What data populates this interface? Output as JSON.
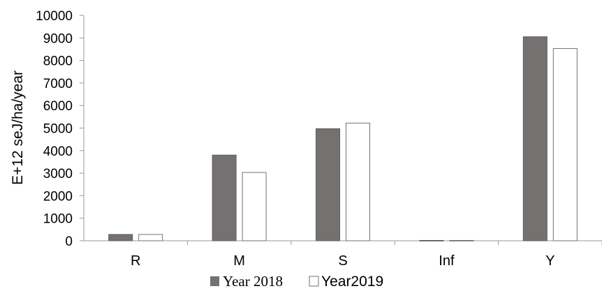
{
  "chart_data": {
    "type": "bar",
    "categories": [
      "R",
      "M",
      "S",
      "Inf",
      "Υ"
    ],
    "series": [
      {
        "name": "Year 2018",
        "values": [
          280,
          3800,
          4970,
          15,
          9050
        ],
        "color": "#767171"
      },
      {
        "name": "Year2019",
        "values": [
          280,
          3030,
          5220,
          15,
          8530
        ],
        "color": "#ffffff"
      }
    ],
    "ylabel": "E+12 seJ/ha/year",
    "ylim": [
      0,
      10000
    ],
    "yticks": [
      "0",
      "1000",
      "2000",
      "3000",
      "4000",
      "5000",
      "6000",
      "7000",
      "8000",
      "9000",
      "10000"
    ],
    "grid": false,
    "legend": "bottom"
  }
}
